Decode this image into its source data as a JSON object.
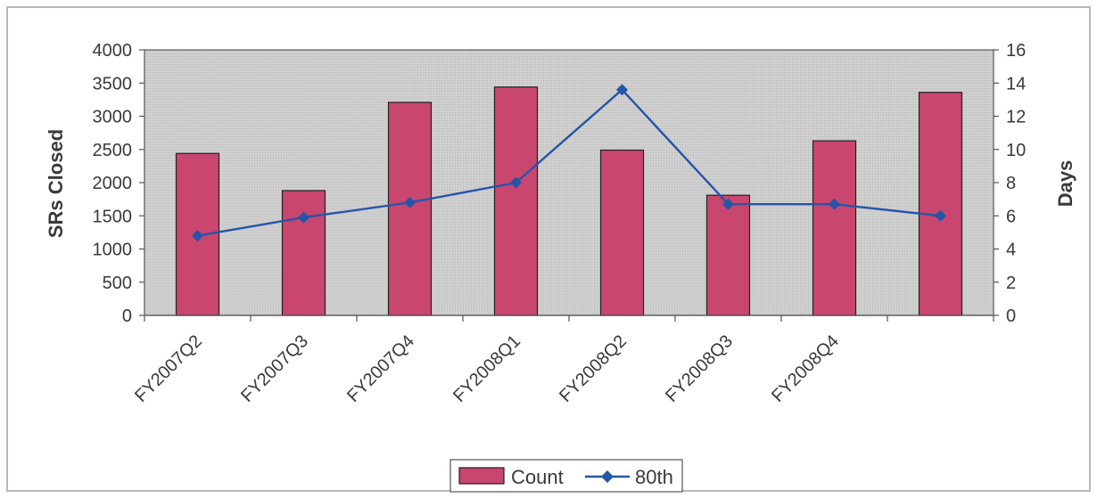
{
  "chart_data": {
    "type": "bar",
    "categories": [
      "FY2007Q2",
      "FY2007Q3",
      "FY2007Q4",
      "FY2008Q1",
      "FY2008Q2",
      "FY2008Q3",
      "FY2008Q4",
      ""
    ],
    "series": [
      {
        "name": "Count",
        "type": "bar",
        "axis": "left",
        "color": "#c9466f",
        "values": [
          2440,
          1880,
          3210,
          3440,
          2490,
          1810,
          2630,
          3360
        ]
      },
      {
        "name": "80th",
        "type": "line",
        "axis": "right",
        "color": "#2555a8",
        "values": [
          4.8,
          5.9,
          6.8,
          8.0,
          13.6,
          6.7,
          6.7,
          6.0
        ]
      }
    ],
    "ylabel": "SRs Closed",
    "y2label": "Days",
    "ylim": [
      0,
      4000
    ],
    "y2lim": [
      0,
      16
    ],
    "yticks": [
      0,
      500,
      1000,
      1500,
      2000,
      2500,
      3000,
      3500,
      4000
    ],
    "y2ticks": [
      0,
      2,
      4,
      6,
      8,
      10,
      12,
      14,
      16
    ],
    "grid": true,
    "legend": {
      "position": "bottom",
      "entries": [
        "Count",
        "80th"
      ]
    }
  }
}
